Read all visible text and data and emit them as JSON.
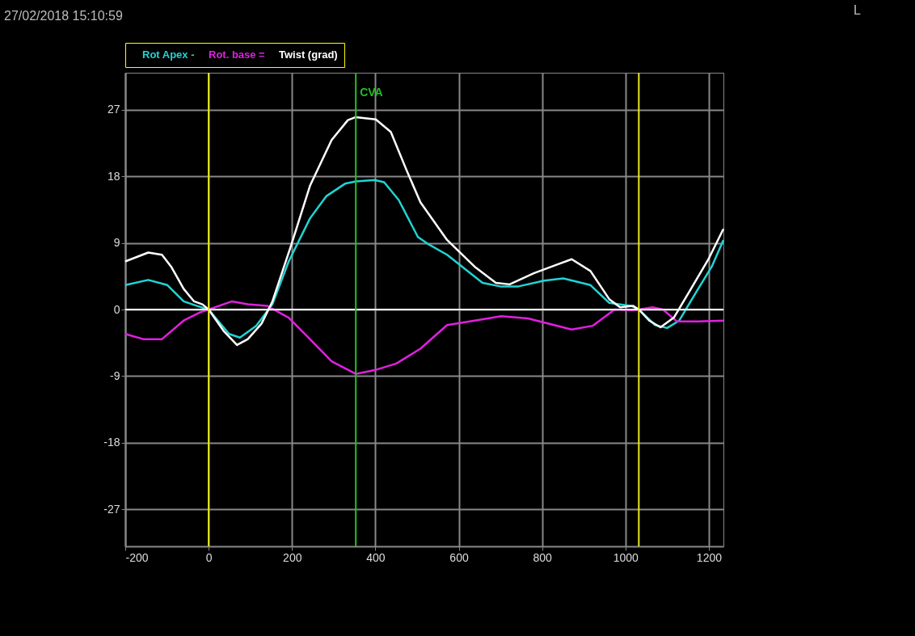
{
  "chart_data": {
    "type": "line",
    "x": [
      -200,
      -145,
      -112,
      -90,
      -60,
      -35,
      -15,
      0,
      36,
      68,
      94,
      127,
      153,
      198,
      243,
      295,
      334,
      353,
      401,
      437,
      475,
      508,
      572,
      638,
      689,
      722,
      780,
      832,
      871,
      916,
      961,
      987,
      1018,
      1032,
      1057,
      1084,
      1116,
      1154,
      1200,
      1235
    ],
    "series": [
      {
        "name": "Rot Apex -",
        "color": "#22d3d3",
        "x": [
          -200,
          -145,
          -99,
          -60,
          -29,
          0,
          49,
          75,
          114,
          153,
          192,
          243,
          282,
          327,
          353,
          398,
          421,
          456,
          502,
          528,
          572,
          657,
          702,
          741,
          805,
          851,
          916,
          961,
          1013,
          1032,
          1071,
          1100,
          1129,
          1168,
          1207,
          1235
        ],
        "values": [
          3.3,
          4.0,
          3.3,
          1.1,
          0.5,
          0,
          -3.3,
          -3.8,
          -2.2,
          0.7,
          6.5,
          12.3,
          15.3,
          17.0,
          17.3,
          17.5,
          17.2,
          14.8,
          9.8,
          8.8,
          7.4,
          3.6,
          3.1,
          3.1,
          3.9,
          4.2,
          3.3,
          0.9,
          0.5,
          0,
          -2.1,
          -2.5,
          -1.5,
          2.2,
          5.8,
          9.4
        ]
      },
      {
        "name": "Rot. base =",
        "color": "#e020e0",
        "x": [
          -200,
          -157,
          -112,
          -60,
          -21,
          0,
          56,
          94,
          140,
          192,
          243,
          295,
          353,
          398,
          450,
          508,
          572,
          638,
          702,
          766,
          871,
          921,
          974,
          1018,
          1032,
          1065,
          1090,
          1123,
          1174,
          1235
        ],
        "values": [
          -3.3,
          -4.0,
          -4.0,
          -1.5,
          -0.4,
          0,
          1.1,
          0.7,
          0.5,
          -1.1,
          -4.0,
          -7.0,
          -8.7,
          -8.2,
          -7.3,
          -5.3,
          -2.1,
          -1.5,
          -0.9,
          -1.2,
          -2.7,
          -2.2,
          0,
          -0.1,
          0,
          0.3,
          0,
          -1.6,
          -1.6,
          -1.5
        ]
      },
      {
        "name": "Twist (grad)",
        "color": "#ffffff",
        "values": [
          6.5,
          7.7,
          7.4,
          5.8,
          2.8,
          1.1,
          0.7,
          0,
          -2.9,
          -4.8,
          -4.0,
          -1.9,
          1.1,
          8.7,
          16.7,
          22.9,
          25.6,
          26.0,
          25.7,
          24.0,
          18.8,
          14.5,
          9.4,
          5.8,
          3.6,
          3.4,
          4.9,
          6.0,
          6.8,
          5.2,
          1.4,
          0.3,
          0.5,
          0,
          -1.5,
          -2.4,
          -1.1,
          2.5,
          6.9,
          10.9
        ]
      }
    ],
    "xlim": [
      -200,
      1235
    ],
    "xticks": [
      -200,
      0,
      200,
      400,
      600,
      800,
      1000,
      1200
    ],
    "ylim": [
      -32,
      32
    ],
    "yticks": [
      -27,
      -18,
      -9,
      0,
      9,
      18,
      27
    ],
    "grid": true,
    "legend": "top left",
    "ref_lines": [
      {
        "axis": "y",
        "value": 0,
        "color": "#ffffff"
      },
      {
        "axis": "x",
        "value": 0,
        "color": "#e8e820"
      },
      {
        "axis": "x",
        "value": 1032,
        "color": "#e8e820"
      },
      {
        "axis": "x",
        "value": 353,
        "color": "#22c022",
        "label": "CVA"
      }
    ],
    "annotations": [
      "27/02/2018 15:10:59",
      "L"
    ]
  }
}
